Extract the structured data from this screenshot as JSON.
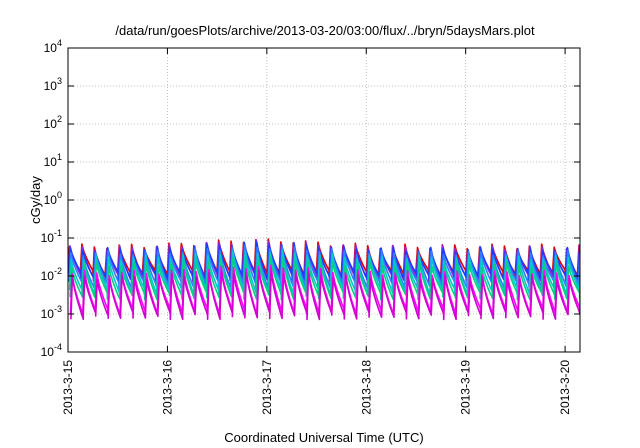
{
  "chart_data": {
    "type": "line",
    "title": "/data/run/goesPlots/archive/2013-03-20/03:00/flux/../bryn/5daysMars.plot",
    "xlabel": "Coordinated Universal Time (UTC)",
    "ylabel": "cGy/day",
    "yscale": "log",
    "ylim_exponents": [
      -4,
      4
    ],
    "ytick_base": "10",
    "ytick_exponents": [
      "-4",
      "-3",
      "-2",
      "-1",
      "0",
      "1",
      "2",
      "3",
      "4"
    ],
    "xtick_labels": [
      "2013-3-15",
      "2013-3-16",
      "2013-3-17",
      "2013-3-18",
      "2013-3-19",
      "2013-3-20"
    ],
    "xlim_days": [
      0,
      5.15
    ],
    "grid": true,
    "sawtooth_cycles_per_day": 8,
    "series": [
      {
        "color": "#e00000",
        "peak": 0.06,
        "trough": 0.012
      },
      {
        "color": "#8a2be2",
        "peak": 0.055,
        "trough": 0.009
      },
      {
        "color": "#1e3cff",
        "peak": 0.05,
        "trough": 0.01
      },
      {
        "color": "#2f7fff",
        "peak": 0.04,
        "trough": 0.006
      },
      {
        "color": "#00c8c8",
        "peak": 0.03,
        "trough": 0.004
      },
      {
        "color": "#00d080",
        "peak": 0.02,
        "trough": 0.003
      },
      {
        "color": "#ff00ff",
        "peak": 0.012,
        "trough": 0.0012
      },
      {
        "color": "#d000d0",
        "peak": 0.009,
        "trough": 0.0009
      }
    ]
  }
}
